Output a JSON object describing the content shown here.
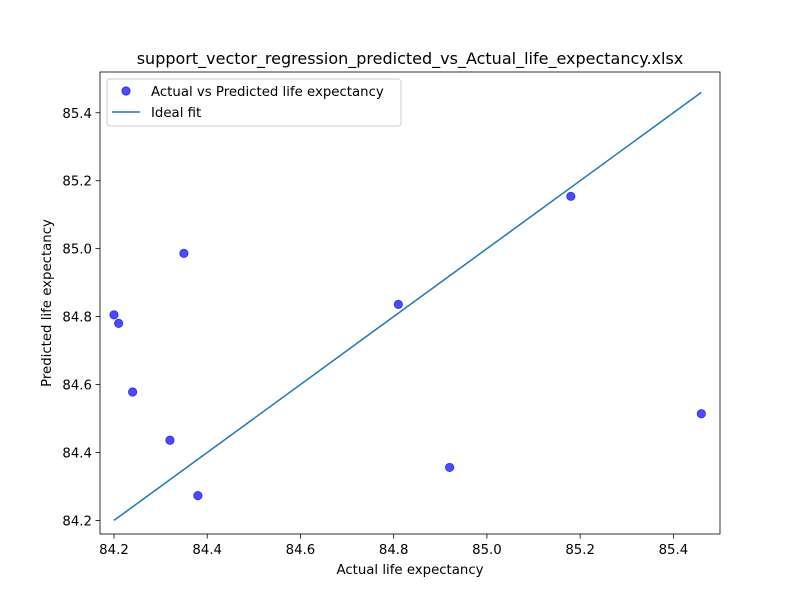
{
  "chart_data": {
    "type": "scatter",
    "title": "support_vector_regression_predicted_vs_Actual_life_expectancy.xlsx",
    "xlabel": "Actual life expectancy",
    "ylabel": "Predicted life expectancy",
    "xlim": [
      84.17,
      85.5
    ],
    "ylim": [
      84.16,
      85.52
    ],
    "xticks": [
      "84.2",
      "84.4",
      "84.6",
      "84.8",
      "85.0",
      "85.2",
      "85.4"
    ],
    "yticks": [
      "84.2",
      "84.4",
      "84.6",
      "84.8",
      "85.0",
      "85.2",
      "85.4"
    ],
    "grid": false,
    "legend_position": "upper-left",
    "series": [
      {
        "name": "Actual vs Predicted life expectancy",
        "kind": "scatter",
        "color": "#0000ff",
        "x": [
          84.2,
          84.21,
          84.24,
          84.32,
          84.35,
          84.38,
          84.81,
          84.92,
          85.18,
          85.46
        ],
        "y": [
          84.805,
          84.78,
          84.578,
          84.436,
          84.986,
          84.273,
          84.836,
          84.356,
          85.154,
          84.514
        ]
      },
      {
        "name": "Ideal fit",
        "kind": "line",
        "color": "#1f77b4",
        "x": [
          84.2,
          85.46
        ],
        "y": [
          84.2,
          85.46
        ]
      }
    ]
  }
}
